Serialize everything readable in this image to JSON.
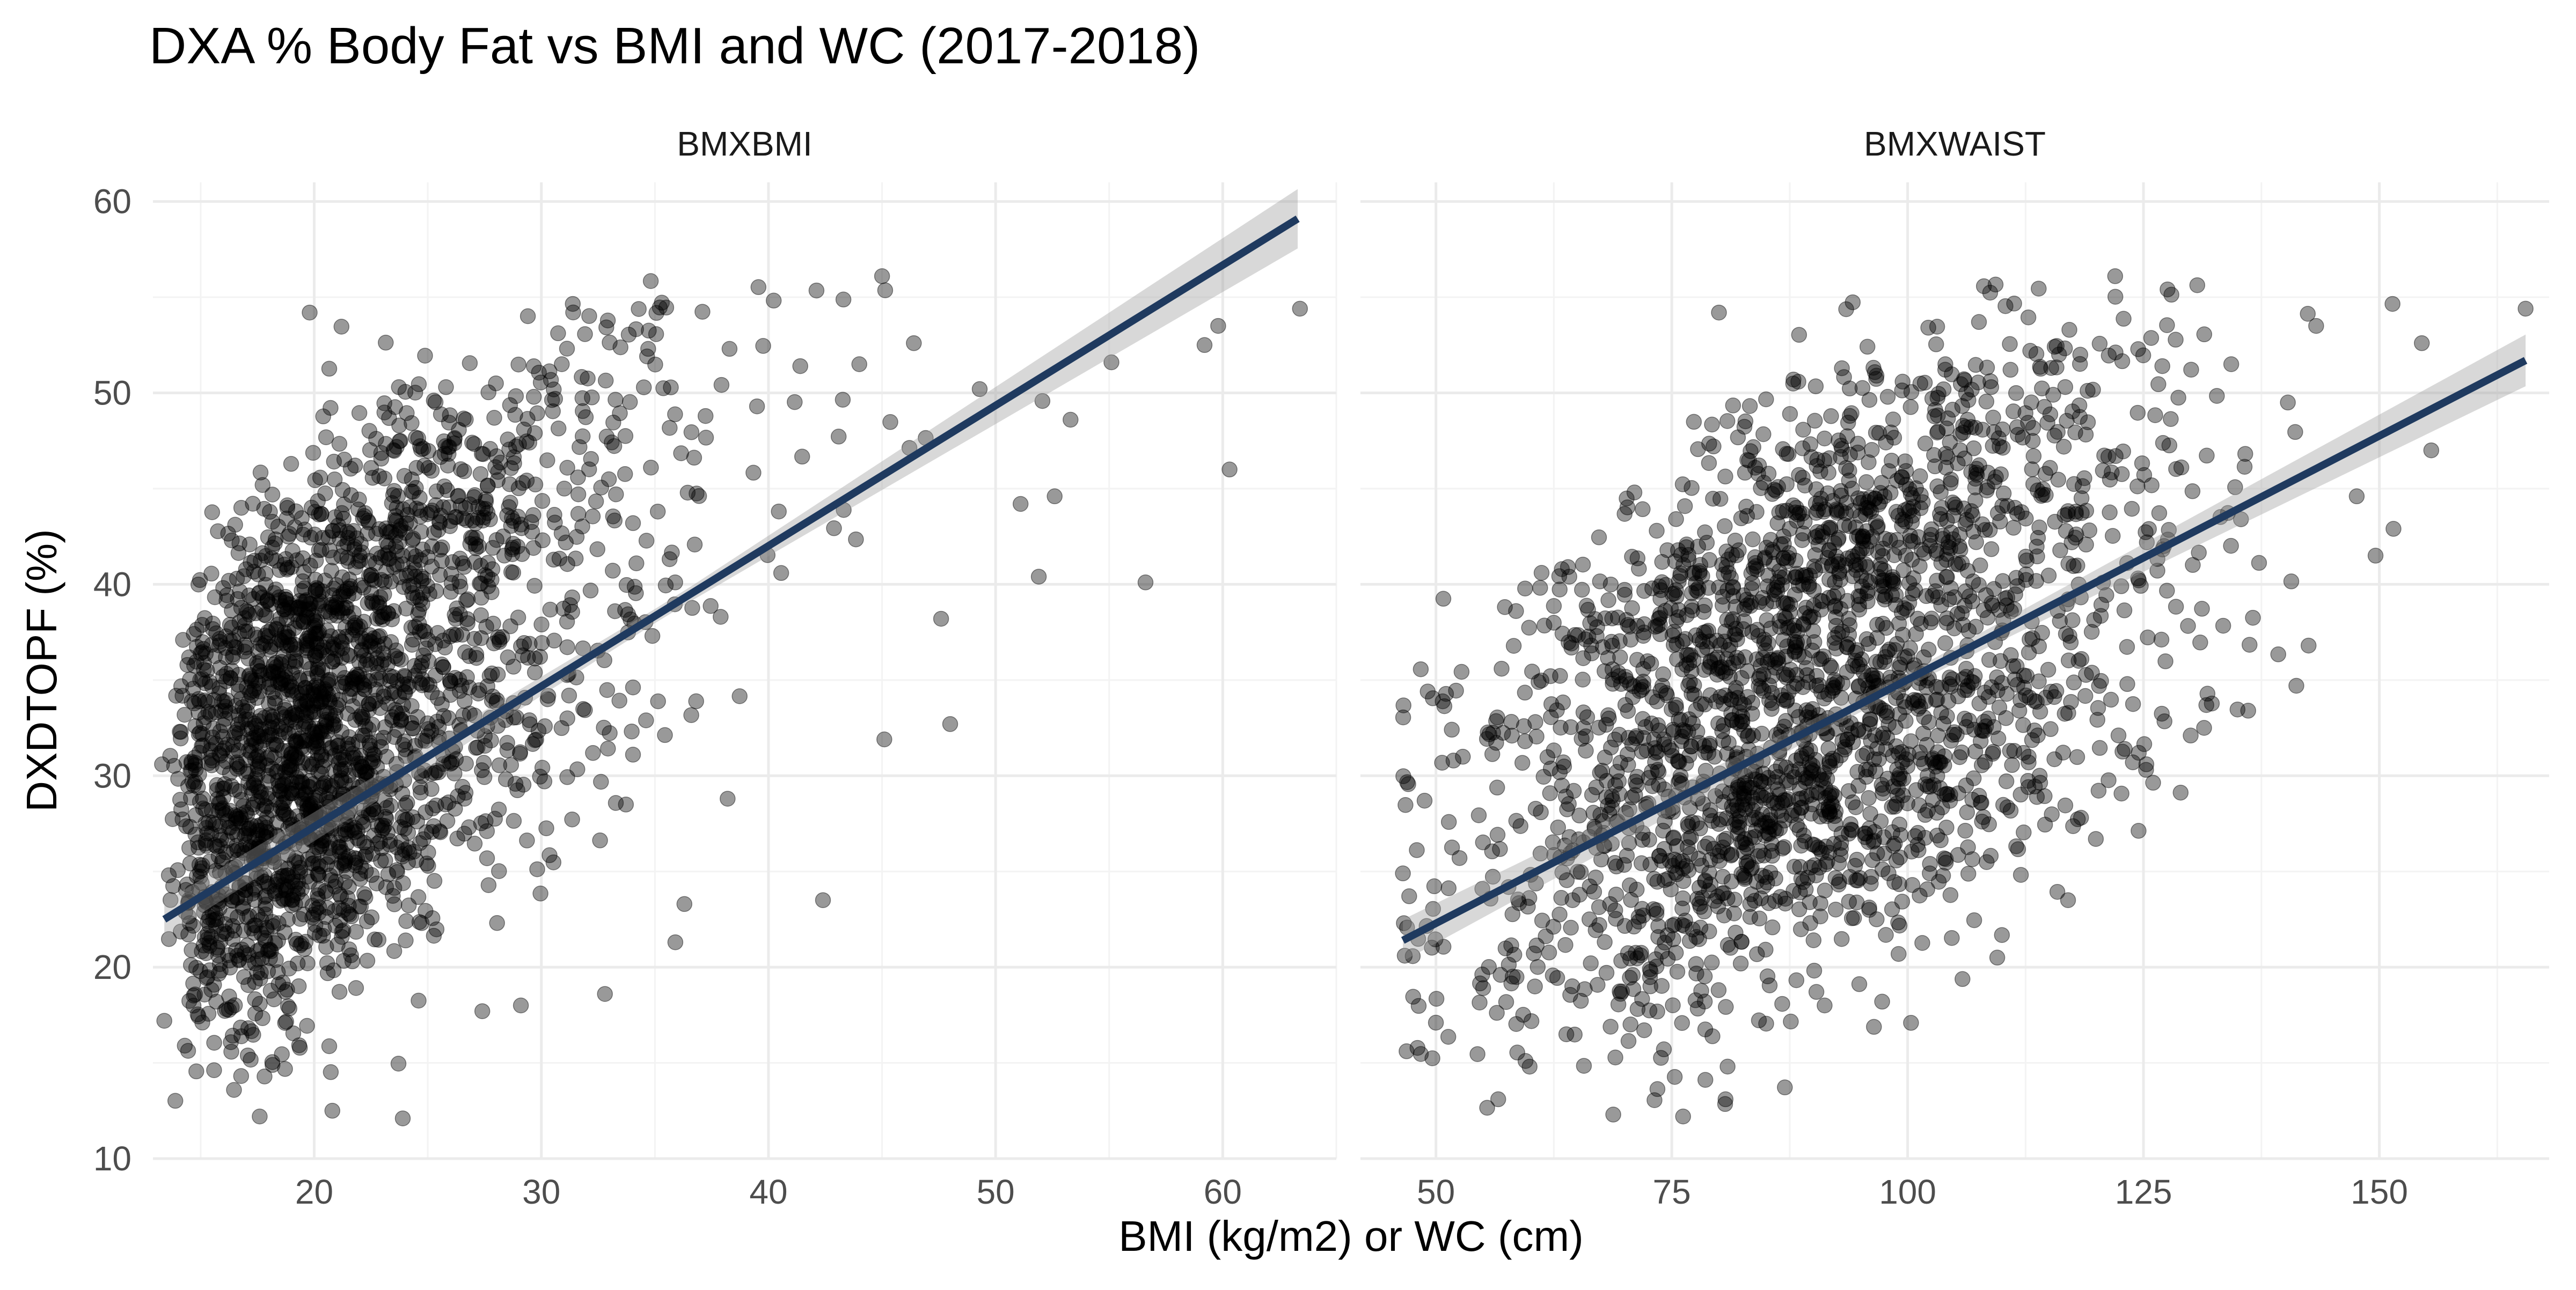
{
  "chart_data": {
    "type": "scatter",
    "title": "DXA % Body Fat vs BMI and WC (2017-2018)",
    "xlabel": "BMI (kg/m2) or WC (cm)",
    "ylabel": "DXDTOPF (%)",
    "grid": true,
    "shared_y": true,
    "ylim": [
      10,
      61
    ],
    "yticks": [
      10,
      20,
      30,
      40,
      50,
      60
    ],
    "colors": {
      "points": "#000000",
      "fit_line": "#1f3a5f",
      "ci_band": "#9e9e9e",
      "grid": "#ebebeb"
    },
    "panels": [
      {
        "strip": "BMXBMI",
        "xlim": [
          12.9,
          65
        ],
        "xticks": [
          20,
          30,
          40,
          50,
          60
        ],
        "fit": {
          "x": [
            13.4,
            63.3
          ],
          "y": [
            22.5,
            59.1
          ],
          "ci_halfwidth_ends": [
            0.7,
            1.2
          ]
        },
        "cloud": {
          "seed": 11,
          "n": 2400,
          "x0": 13.4,
          "xmax": 63.3,
          "x_mode": 19,
          "x_shape": 2.4,
          "x_scale": 3.6,
          "y_center": [
            22,
            31
          ],
          "y_slope": [
            0.78,
            0.95
          ],
          "y_sd": 4.6,
          "y_min": 12.2,
          "y_max": 56
        },
        "points": [
          [
            19.8,
            54.2
          ],
          [
            45.0,
            56.1
          ],
          [
            63.4,
            54.4
          ],
          [
            60.3,
            46.0
          ],
          [
            56.6,
            40.1
          ],
          [
            51.9,
            40.4
          ],
          [
            42.4,
            23.5
          ],
          [
            36.3,
            23.3
          ],
          [
            45.1,
            31.9
          ],
          [
            48.0,
            32.7
          ],
          [
            32.8,
            18.6
          ],
          [
            23.9,
            12.1
          ],
          [
            20.8,
            12.5
          ],
          [
            17.6,
            12.2
          ],
          [
            13.4,
            17.2
          ],
          [
            13.3,
            30.6
          ],
          [
            59.2,
            52.5
          ],
          [
            59.8,
            53.5
          ],
          [
            53.3,
            48.6
          ],
          [
            55.1,
            51.6
          ],
          [
            52.6,
            44.6
          ],
          [
            49.3,
            50.2
          ],
          [
            46.4,
            52.6
          ],
          [
            47.6,
            38.2
          ],
          [
            15.0,
            36.4
          ],
          [
            16.6,
            40.3
          ],
          [
            18.9,
            27.8
          ],
          [
            35.9,
            21.3
          ],
          [
            29.1,
            18.0
          ],
          [
            27.4,
            17.7
          ],
          [
            41.4,
            51.4
          ],
          [
            44.0,
            51.5
          ],
          [
            30.9,
            51.5
          ],
          [
            25.8,
            50.3
          ],
          [
            28.0,
            50.5
          ],
          [
            51.1,
            44.2
          ],
          [
            13.6,
            24.8
          ],
          [
            14.3,
            15.9
          ],
          [
            22.0,
            41.5
          ],
          [
            38.2,
            28.8
          ]
        ]
      },
      {
        "strip": "BMXWAIST",
        "xlim": [
          42,
          168
        ],
        "xticks": [
          50,
          75,
          100,
          125,
          150
        ],
        "fit": {
          "x": [
            46.5,
            165.5
          ],
          "y": [
            21.4,
            51.7
          ],
          "ci_halfwidth_ends": [
            0.9,
            1.0
          ]
        },
        "cloud": {
          "seed": 29,
          "n": 2400,
          "x0": 46.5,
          "xmax": 166,
          "x_mode": 90,
          "x_sd": 18,
          "y_center": [
            18.5,
            29
          ],
          "y_slope": [
            0.24,
            0.26
          ],
          "y_sd": 4.7,
          "y_min": 12.2,
          "y_max": 56
        },
        "points": [
          [
            80.0,
            54.2
          ],
          [
            122.0,
            56.1
          ],
          [
            165.5,
            54.4
          ],
          [
            154.5,
            52.6
          ],
          [
            151.5,
            42.9
          ],
          [
            143.3,
            53.5
          ],
          [
            109.5,
            20.5
          ],
          [
            117.0,
            23.5
          ],
          [
            80.7,
            13.1
          ],
          [
            76.2,
            12.2
          ],
          [
            68.8,
            12.3
          ],
          [
            46.6,
            22.3
          ],
          [
            50.0,
            17.1
          ],
          [
            48.8,
            28.7
          ],
          [
            64.0,
            40.9
          ],
          [
            61.2,
            40.6
          ],
          [
            87.9,
            50.7
          ],
          [
            96.7,
            50.9
          ],
          [
            104.0,
            51.5
          ],
          [
            113.0,
            52.2
          ],
          [
            118.3,
            52.0
          ],
          [
            127.0,
            51.4
          ],
          [
            134.3,
            51.5
          ],
          [
            140.3,
            49.5
          ],
          [
            147.6,
            44.6
          ],
          [
            149.6,
            41.5
          ],
          [
            142.5,
            36.8
          ],
          [
            141.2,
            34.7
          ],
          [
            136.1,
            33.4
          ],
          [
            125.3,
            30.6
          ],
          [
            130.0,
            32.1
          ],
          [
            111.3,
            31.3
          ],
          [
            91.2,
            18.0
          ],
          [
            97.3,
            18.2
          ],
          [
            56.6,
            13.1
          ],
          [
            59.5,
            15.1
          ],
          [
            73.4,
            42.8
          ],
          [
            52.5,
            25.7
          ],
          [
            83.0,
            46.5
          ],
          [
            155.5,
            47.0
          ]
        ]
      }
    ]
  }
}
